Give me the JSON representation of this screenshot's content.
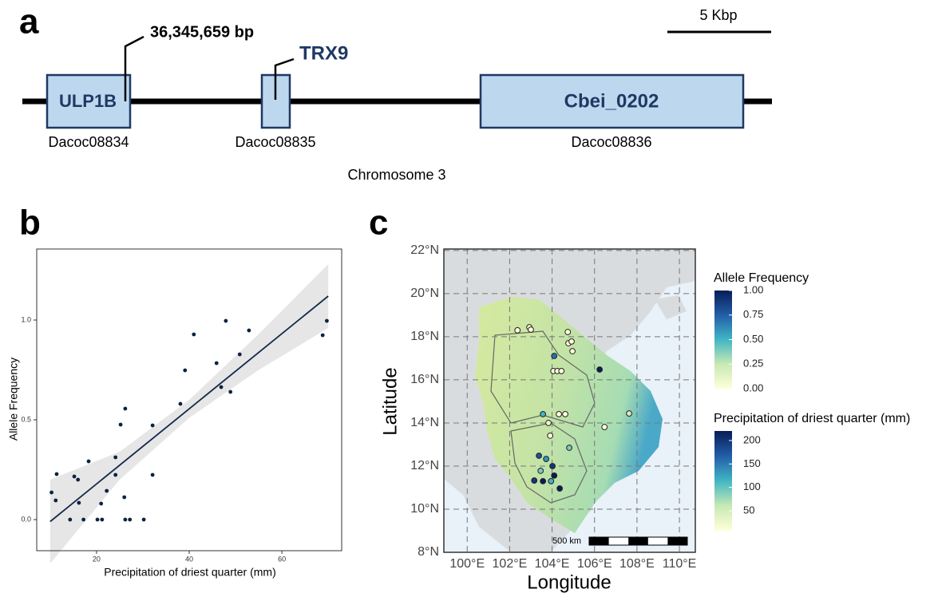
{
  "panel_a": {
    "label": "a",
    "position": "36,345,659 bp",
    "marker_gene": "TRX9",
    "genes": [
      {
        "name": "ULP1B",
        "id": "Dacoc08834"
      },
      {
        "name": null,
        "id": "Dacoc08835"
      },
      {
        "name": "Cbei_0202",
        "id": "Dacoc08836"
      }
    ],
    "scale": "5 Kbp",
    "chromosome": "Chromosome 3"
  },
  "chart_data": {
    "type": "scatter",
    "label": "b",
    "x_label": "Precipitation of driest quarter (mm)",
    "y_label": "Allele Frequency",
    "color": "#0d2240",
    "x": [
      10.3,
      11.4,
      11.2,
      14.3,
      15.2,
      16.0,
      16.2,
      17.2,
      18.3,
      20.2,
      21.0,
      21.2,
      22.2,
      24.1,
      24.1,
      25.2,
      26.0,
      26.2,
      26.2,
      27.2,
      30.2,
      32.1,
      32.1,
      38.1,
      39.1,
      41.0,
      45.9,
      46.9,
      47.9,
      48.9,
      50.9,
      52.9,
      68.8,
      69.7
    ],
    "values": [
      0.136,
      0.228,
      0.096,
      0,
      0.216,
      0.2,
      0.084,
      0,
      0.292,
      0,
      0.08,
      0,
      0.144,
      0.312,
      0.224,
      0.476,
      0.112,
      0.556,
      0,
      0,
      0,
      0.472,
      0.224,
      0.58,
      0.748,
      0.928,
      0.784,
      0.664,
      0.996,
      0.64,
      0.828,
      0.948,
      0.924,
      0.996
    ],
    "fit": {
      "x": [
        10,
        70
      ],
      "y": [
        -0.01,
        1.12
      ],
      "color": "#13294b"
    },
    "ci": {
      "x": [
        10,
        25,
        40,
        55,
        70
      ],
      "upper": [
        0.2,
        0.34,
        0.6,
        0.93,
        1.28
      ],
      "lower": [
        -0.22,
        0.2,
        0.51,
        0.75,
        0.96
      ],
      "color": "#e6e6e6"
    },
    "xlim": [
      7.1,
      72.9
    ],
    "ylim": [
      -0.156,
      1.356
    ],
    "xticks": [
      20,
      40,
      60
    ],
    "yticks": [
      {
        "value": 0,
        "label": "0.0"
      },
      {
        "value": 0.5,
        "label": "0.5"
      },
      {
        "value": 1,
        "label": "1.0"
      }
    ]
  },
  "panel_c": {
    "label": "c",
    "x_label": "Longitude",
    "y_label": "Latitude",
    "xlim": [
      98.9,
      110.75
    ],
    "ylim": [
      8,
      22.07
    ],
    "xticks": [
      {
        "value": 100,
        "label": "100°E"
      },
      {
        "value": 102,
        "label": "102°E"
      },
      {
        "value": 104,
        "label": "104°E"
      },
      {
        "value": 106,
        "label": "106°E"
      },
      {
        "value": 108,
        "label": "108°E"
      },
      {
        "value": 110,
        "label": "110°E"
      }
    ],
    "yticks": [
      {
        "value": 8,
        "label": "8°N"
      },
      {
        "value": 10,
        "label": "10°N"
      },
      {
        "value": 12,
        "label": "12°N"
      },
      {
        "value": 14,
        "label": "14°N"
      },
      {
        "value": 16,
        "label": "16°N"
      },
      {
        "value": 18,
        "label": "18°N"
      },
      {
        "value": 20,
        "label": "20°N"
      },
      {
        "value": 22,
        "label": "22°N"
      }
    ],
    "scale_bar": "500 km",
    "freq_legend": {
      "title": "Allele Frequency",
      "lim": [
        0,
        1
      ],
      "ticks": [
        {
          "value": 0,
          "label": "0.00"
        },
        {
          "value": 0.25,
          "label": "0.25"
        },
        {
          "value": 0.5,
          "label": "0.50"
        },
        {
          "value": 0.75,
          "label": "0.75"
        },
        {
          "value": 1,
          "label": "1.00"
        }
      ]
    },
    "precip_legend": {
      "title": "Precipitation of driest quarter (mm)",
      "lim": [
        7.4,
        220.4
      ],
      "ticks": [
        50,
        100,
        150,
        200
      ]
    },
    "sites": [
      {
        "lon": 102.37,
        "lat": 18.3,
        "freq": 0
      },
      {
        "lon": 102.93,
        "lat": 18.44,
        "freq": 0
      },
      {
        "lon": 103.0,
        "lat": 18.33,
        "freq": 0
      },
      {
        "lon": 104.74,
        "lat": 18.22,
        "freq": 0
      },
      {
        "lon": 104.77,
        "lat": 17.7,
        "freq": 0
      },
      {
        "lon": 104.96,
        "lat": 17.33,
        "freq": 0
      },
      {
        "lon": 104.92,
        "lat": 17.78,
        "freq": 0
      },
      {
        "lon": 104.1,
        "lat": 17.11,
        "freq": 0.7
      },
      {
        "lon": 104.06,
        "lat": 16.41,
        "freq": 0
      },
      {
        "lon": 104.25,
        "lat": 16.41,
        "freq": 0
      },
      {
        "lon": 104.44,
        "lat": 16.41,
        "freq": 0
      },
      {
        "lon": 106.24,
        "lat": 16.48,
        "freq": 1
      },
      {
        "lon": 103.57,
        "lat": 14.41,
        "freq": 0.5
      },
      {
        "lon": 103.83,
        "lat": 14.0,
        "freq": 0.1
      },
      {
        "lon": 104.32,
        "lat": 14.41,
        "freq": 0
      },
      {
        "lon": 104.62,
        "lat": 14.41,
        "freq": 0
      },
      {
        "lon": 103.91,
        "lat": 13.41,
        "freq": 0
      },
      {
        "lon": 104.81,
        "lat": 12.85,
        "freq": 0.4
      },
      {
        "lon": 106.47,
        "lat": 13.81,
        "freq": 0
      },
      {
        "lon": 107.63,
        "lat": 14.44,
        "freq": 0.2
      },
      {
        "lon": 103.38,
        "lat": 12.48,
        "freq": 0.8
      },
      {
        "lon": 103.72,
        "lat": 12.33,
        "freq": 0.6
      },
      {
        "lon": 104.02,
        "lat": 12.0,
        "freq": 0.9
      },
      {
        "lon": 103.46,
        "lat": 11.78,
        "freq": 0.4
      },
      {
        "lon": 104.1,
        "lat": 11.56,
        "freq": 1
      },
      {
        "lon": 103.16,
        "lat": 11.33,
        "freq": 0.9
      },
      {
        "lon": 103.57,
        "lat": 11.3,
        "freq": 1
      },
      {
        "lon": 103.95,
        "lat": 11.3,
        "freq": 0.5
      },
      {
        "lon": 104.36,
        "lat": 10.96,
        "freq": 1
      }
    ]
  }
}
